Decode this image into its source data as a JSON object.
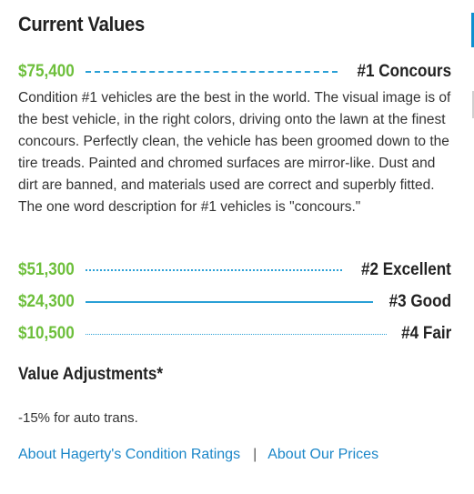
{
  "section_title": "Current Values",
  "values": [
    {
      "amount": "$75,400",
      "label": "#1 Concours",
      "line_style": "dashed"
    },
    {
      "amount": "$51,300",
      "label": "#2 Excellent",
      "line_style": "dotted"
    },
    {
      "amount": "$24,300",
      "label": "#3 Good",
      "line_style": "solid"
    },
    {
      "amount": "$10,500",
      "label": "#4 Fair",
      "line_style": "thin-dotted"
    }
  ],
  "condition_description": "Condition #1 vehicles are the best in the world. The visual image is of the best vehicle, in the right colors, driving onto the lawn at the finest concours. Perfectly clean, the vehicle has been groomed down to the tire treads. Painted and chromed surfaces are mirror-like. Dust and dirt are banned, and materials used are correct and superbly fitted. The one word description for #1 vehicles is \"concours.\"",
  "adjustments": {
    "title": "Value Adjustments*",
    "items": [
      "-15% for auto trans."
    ]
  },
  "links": {
    "condition_ratings": "About Hagerty's Condition Ratings",
    "separator": "|",
    "our_prices": "About Our Prices"
  },
  "colors": {
    "amount_green": "#6dbf3b",
    "line_blue": "#2aa0d6",
    "link_blue": "#1a86c8",
    "heading_dark": "#222222"
  }
}
